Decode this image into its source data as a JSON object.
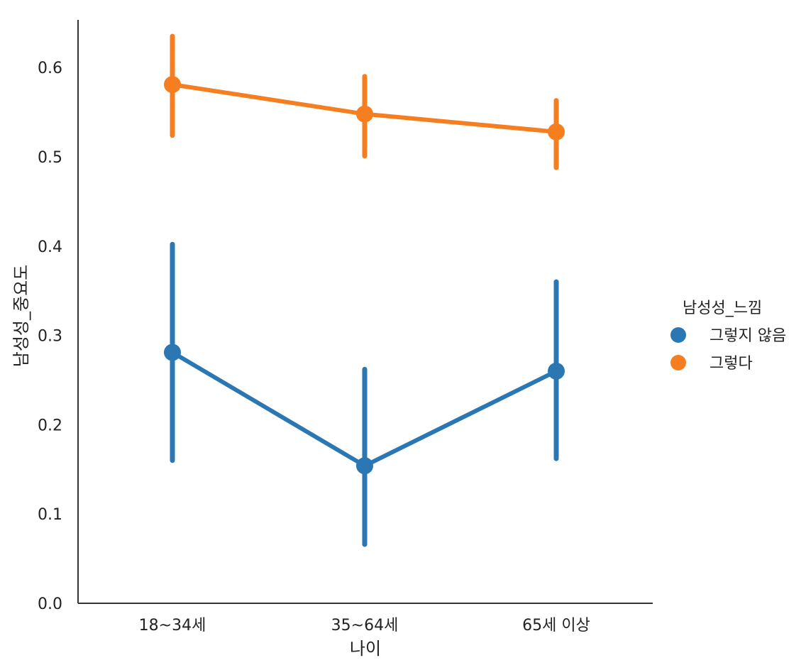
{
  "chart_data": {
    "type": "line",
    "subtype": "point-plot-with-error-bars",
    "title": "",
    "xlabel": "나이",
    "ylabel": "남성성_중요도",
    "categories": [
      "18~34세",
      "35~64세",
      "65세 이상"
    ],
    "ylim": [
      0.0,
      0.65
    ],
    "yticks": [
      0.0,
      0.1,
      0.2,
      0.3,
      0.4,
      0.5,
      0.6
    ],
    "grid": false,
    "legend": {
      "title": "남성성_느낌",
      "position": "right"
    },
    "series": [
      {
        "name": "그렇지 않음",
        "color": "#2a77b4",
        "values": [
          0.281,
          0.154,
          0.26
        ],
        "ci_low": [
          0.16,
          0.066,
          0.162
        ],
        "ci_high": [
          0.402,
          0.262,
          0.36
        ]
      },
      {
        "name": "그렇다",
        "color": "#f57f20",
        "values": [
          0.581,
          0.548,
          0.528
        ],
        "ci_low": [
          0.524,
          0.501,
          0.488
        ],
        "ci_high": [
          0.635,
          0.59,
          0.563
        ]
      }
    ]
  }
}
